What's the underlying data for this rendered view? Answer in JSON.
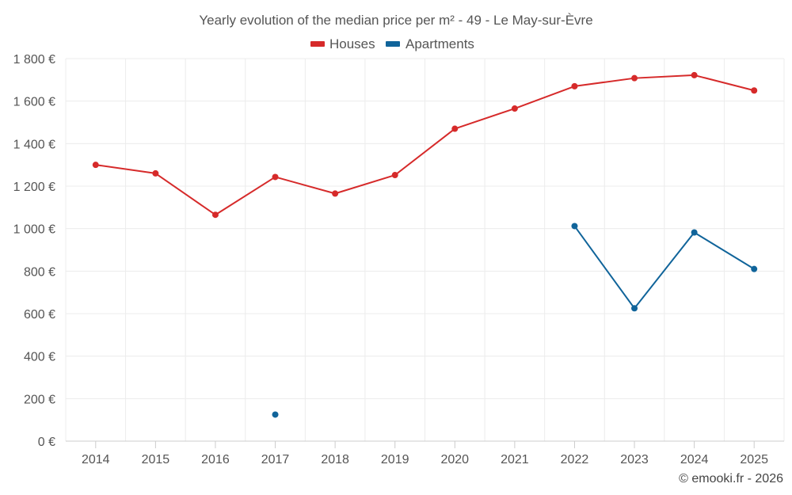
{
  "chart_data": {
    "type": "line",
    "title": "Yearly evolution of the median price per m² - 49 - Le May-sur-Èvre",
    "xlabel": "",
    "ylabel": "",
    "categories": [
      "2014",
      "2015",
      "2016",
      "2017",
      "2018",
      "2019",
      "2020",
      "2021",
      "2022",
      "2023",
      "2024",
      "2025"
    ],
    "ylim": [
      0,
      1800
    ],
    "yticks": [
      0,
      200,
      400,
      600,
      800,
      1000,
      1200,
      1400,
      1600,
      1800
    ],
    "ytick_labels": [
      "0 €",
      "200 €",
      "400 €",
      "600 €",
      "800 €",
      "1 000 €",
      "1 200 €",
      "1 400 €",
      "1 600 €",
      "1 800 €"
    ],
    "grid": true,
    "legend_position": "top-center",
    "series": [
      {
        "name": "Houses",
        "color": "#d62a2a",
        "values": [
          1300,
          1260,
          1065,
          1243,
          1165,
          1252,
          1470,
          1565,
          1670,
          1708,
          1722,
          1650
        ]
      },
      {
        "name": "Apartments",
        "color": "#10649a",
        "values": [
          null,
          null,
          null,
          125,
          null,
          null,
          null,
          null,
          1012,
          625,
          982,
          810
        ]
      }
    ]
  },
  "credit": "© emooki.fr - 2026"
}
